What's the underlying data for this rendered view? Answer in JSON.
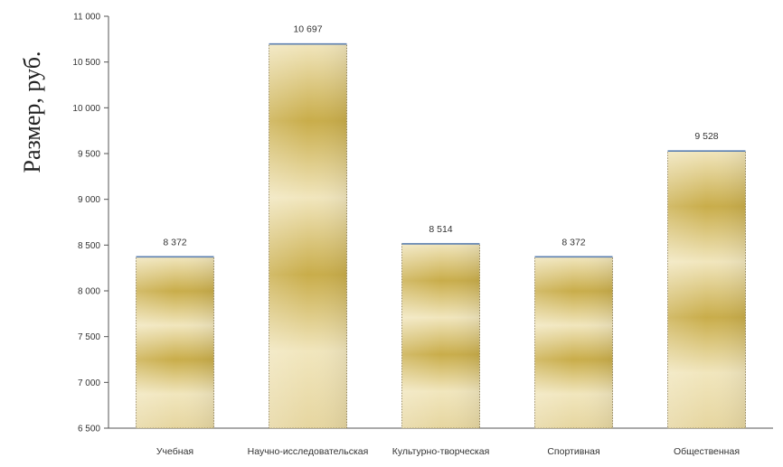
{
  "chart_data": {
    "type": "bar",
    "title": "",
    "xlabel": "",
    "ylabel": "Размер, руб.",
    "ylim": [
      6500,
      11000
    ],
    "yticks": [
      6500,
      7000,
      7500,
      8000,
      8500,
      9000,
      9500,
      10000,
      10500,
      11000
    ],
    "ytick_labels": [
      "6 500",
      "7 000",
      "7 500",
      "8 000",
      "8 500",
      "9 000",
      "9 500",
      "10 000",
      "10 500",
      "11 000"
    ],
    "categories": [
      "Учебная",
      "Научно-исследовательская",
      "Культурно-творческая",
      "Спортивная",
      "Общественная"
    ],
    "values": [
      8372,
      10697,
      8514,
      8372,
      9528
    ],
    "value_labels": [
      "8 372",
      "10 697",
      "8 514",
      "8 372",
      "9 528"
    ],
    "grid": false,
    "legend": "none",
    "colors": {
      "bar_gold": "#c9ad4a",
      "bar_light": "#f1e6bd",
      "bar_top": "#5b7fb0"
    }
  }
}
